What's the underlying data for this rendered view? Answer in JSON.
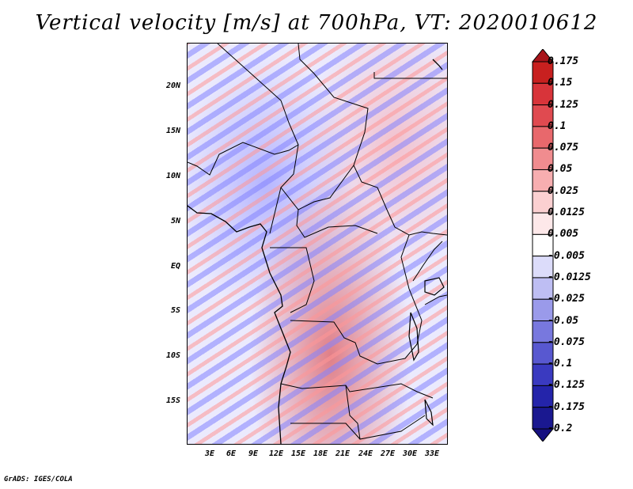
{
  "title": "Vertical velocity [m/s] at 700hPa, VT: 2020010612",
  "footer": "GrADS: IGES/COLA",
  "map": {
    "lat_labels": [
      "20N",
      "15N",
      "10N",
      "5N",
      "EQ",
      "5S",
      "10S",
      "15S"
    ],
    "lon_labels": [
      "3E",
      "6E",
      "9E",
      "12E",
      "15E",
      "18E",
      "21E",
      "24E",
      "27E",
      "30E",
      "33E"
    ]
  },
  "colorbar": {
    "labels": [
      "0.175",
      "0.15",
      "0.125",
      "0.1",
      "0.075",
      "0.05",
      "0.025",
      "0.0125",
      "0.005",
      "-0.005",
      "-0.0125",
      "-0.025",
      "-0.05",
      "-0.075",
      "-0.1",
      "-0.125",
      "-0.175",
      "-0.2"
    ],
    "colors": [
      "#a8141a",
      "#c8201f",
      "#d8343a",
      "#e04a50",
      "#e8686c",
      "#f08c8f",
      "#f7aeb0",
      "#fbd0d1",
      "#fde8e9",
      "#ffffff",
      "#dcdcfa",
      "#bebef3",
      "#9a9aea",
      "#7878de",
      "#5858d0",
      "#3a3ac0",
      "#2424aa",
      "#1a1890",
      "#161080"
    ]
  }
}
